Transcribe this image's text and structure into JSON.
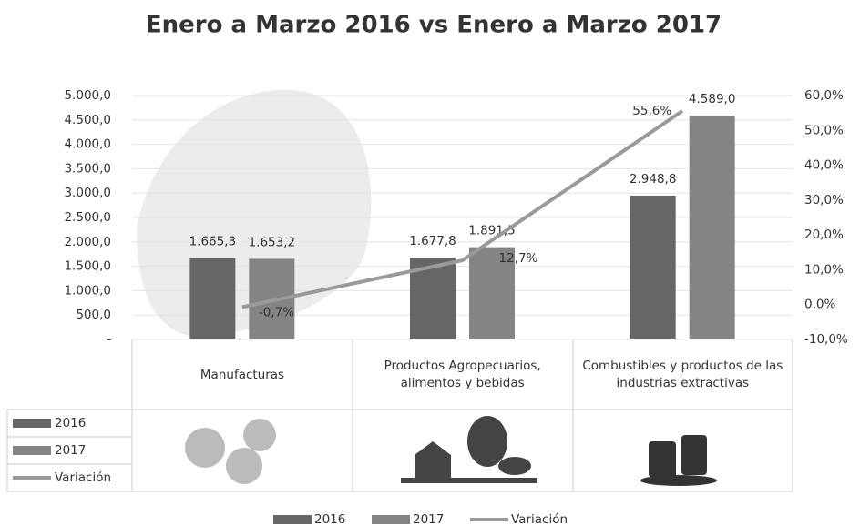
{
  "chart_data": {
    "type": "bar",
    "title": "Enero a Marzo 2016 vs Enero a Marzo 2017",
    "categories": [
      "Manufacturas",
      "Productos Agropecuarios, alimentos y bebidas",
      "Combustibles y productos de las industrias extractivas"
    ],
    "series": [
      {
        "name": "2016",
        "color": "#666666",
        "values": [
          1665.3,
          1677.8,
          2948.8
        ],
        "value_labels": [
          "1.665,3",
          "1.677,8",
          "2.948,8"
        ]
      },
      {
        "name": "2017",
        "color": "#848484",
        "values": [
          1653.2,
          1891.5,
          4589.0
        ],
        "value_labels": [
          "1.653,2",
          "1.891,5",
          "4.589,0"
        ]
      },
      {
        "name": "Variación",
        "type": "line",
        "axis": "y2",
        "color": "#9a9a9a",
        "values": [
          -0.7,
          12.7,
          55.6
        ],
        "value_labels": [
          "-0,7%",
          "12,7%",
          "55,6%"
        ]
      }
    ],
    "ylim": [
      0,
      5000
    ],
    "yticks": [
      {
        "value": 0,
        "label": "-"
      },
      {
        "value": 500,
        "label": "500,0"
      },
      {
        "value": 1000,
        "label": "1.000,0"
      },
      {
        "value": 1500,
        "label": "1.500,0"
      },
      {
        "value": 2000,
        "label": "2.000,0"
      },
      {
        "value": 2500,
        "label": "2.500,0"
      },
      {
        "value": 3000,
        "label": "3.000,0"
      },
      {
        "value": 3500,
        "label": "3.500,0"
      },
      {
        "value": 4000,
        "label": "4.000,0"
      },
      {
        "value": 4500,
        "label": "4.500,0"
      },
      {
        "value": 5000,
        "label": "5.000,0"
      }
    ],
    "y2lim": [
      -10,
      60
    ],
    "y2ticks": [
      {
        "value": -10,
        "label": "-10,0%"
      },
      {
        "value": 0,
        "label": "0,0%"
      },
      {
        "value": 10,
        "label": "10,0%"
      },
      {
        "value": 20,
        "label": "20,0%"
      },
      {
        "value": 30,
        "label": "30,0%"
      },
      {
        "value": 40,
        "label": "40,0%"
      },
      {
        "value": 50,
        "label": "50,0%"
      },
      {
        "value": 60,
        "label": "60,0%"
      }
    ],
    "grid": true,
    "legend": "bottom"
  }
}
